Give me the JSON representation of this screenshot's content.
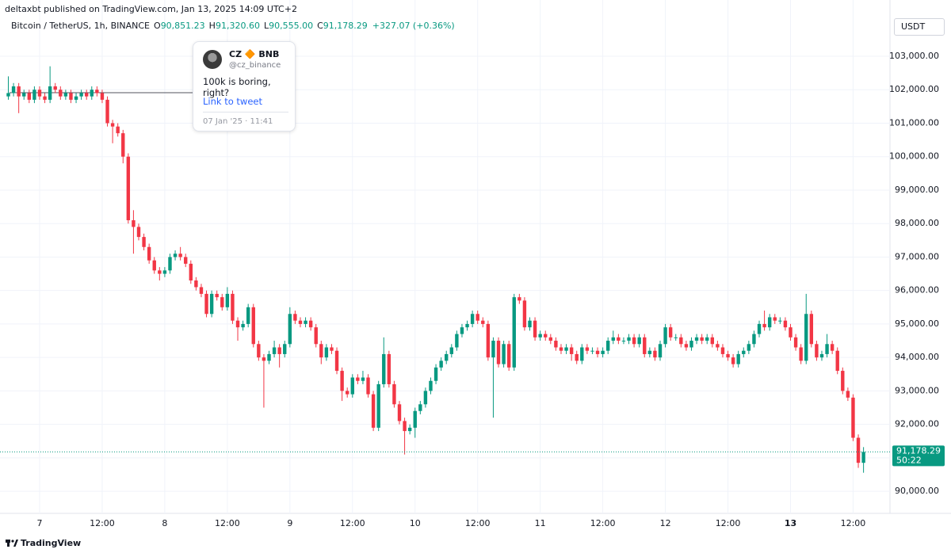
{
  "header": {
    "published": "deltaxbt published on TradingView.com, Jan 13, 2025 14:09 UTC+2",
    "footer": "TradingView"
  },
  "tweet": {
    "author": "CZ 🔶 BNB",
    "handle": "@cz_binance",
    "text": "100k is boring, right?",
    "link": "Link to tweet",
    "date": "07 Jan '25 · 11:41"
  },
  "chart_data": {
    "type": "candlestick",
    "title": "Bitcoin / TetherUS, 1h, BINANCE",
    "currency": "USDT",
    "ohlc_keys": [
      "O",
      "H",
      "L",
      "C"
    ],
    "ohlc_labels": [
      "90,851.23",
      "91,320.60",
      "90,555.00",
      "91,178.29"
    ],
    "change_label": "+327.07 (+0.36%)",
    "countdown": "50:22",
    "up_color": "#089981",
    "down_color": "#f23645",
    "grid": true,
    "ylim": [
      89340,
      104160
    ],
    "yticks": [
      {
        "value": 90000,
        "label": "90,000.00"
      },
      {
        "value": 91000,
        "label": "91,000.00"
      },
      {
        "value": 92000,
        "label": "92,000.00"
      },
      {
        "value": 93000,
        "label": "93,000.00"
      },
      {
        "value": 94000,
        "label": "94,000.00"
      },
      {
        "value": 95000,
        "label": "95,000.00"
      },
      {
        "value": 96000,
        "label": "96,000.00"
      },
      {
        "value": 97000,
        "label": "97,000.00"
      },
      {
        "value": 98000,
        "label": "98,000.00"
      },
      {
        "value": 99000,
        "label": "99,000.00"
      },
      {
        "value": 100000,
        "label": "100,000.00"
      },
      {
        "value": 101000,
        "label": "101,000.00"
      },
      {
        "value": 102000,
        "label": "102,000.00"
      },
      {
        "value": 103000,
        "label": "103,000.00"
      }
    ],
    "categories": [
      null,
      null,
      null,
      null,
      null,
      null,
      "7",
      null,
      null,
      null,
      null,
      null,
      null,
      null,
      null,
      null,
      null,
      null,
      "12:00",
      null,
      null,
      null,
      null,
      null,
      null,
      null,
      null,
      null,
      null,
      null,
      "8",
      null,
      null,
      null,
      null,
      null,
      null,
      null,
      null,
      null,
      null,
      null,
      "12:00",
      null,
      null,
      null,
      null,
      null,
      null,
      null,
      null,
      null,
      null,
      null,
      "9",
      null,
      null,
      null,
      null,
      null,
      null,
      null,
      null,
      null,
      null,
      null,
      "12:00",
      null,
      null,
      null,
      null,
      null,
      null,
      null,
      null,
      null,
      null,
      null,
      "10",
      null,
      null,
      null,
      null,
      null,
      null,
      null,
      null,
      null,
      null,
      null,
      "12:00",
      null,
      null,
      null,
      null,
      null,
      null,
      null,
      null,
      null,
      null,
      null,
      "11",
      null,
      null,
      null,
      null,
      null,
      null,
      null,
      null,
      null,
      null,
      null,
      "12:00",
      null,
      null,
      null,
      null,
      null,
      null,
      null,
      null,
      null,
      null,
      null,
      "12",
      null,
      null,
      null,
      null,
      null,
      null,
      null,
      null,
      null,
      null,
      null,
      "12:00",
      null,
      null,
      null,
      null,
      null,
      null,
      null,
      null,
      null,
      null,
      null,
      "13",
      null,
      null,
      null,
      null,
      null,
      null,
      null,
      null,
      null,
      null,
      null,
      "12:00",
      null,
      null
    ],
    "open": [
      101800,
      101900,
      102100,
      101800,
      101900,
      101700,
      102000,
      101800,
      101700,
      102100,
      102000,
      101800,
      101900,
      101700,
      101800,
      101900,
      101800,
      102000,
      101900,
      101700,
      101000,
      100900,
      100700,
      100000,
      98100,
      97900,
      97600,
      97300,
      96900,
      96600,
      96500,
      96600,
      97000,
      97100,
      97000,
      96800,
      96300,
      96100,
      95900,
      95300,
      95900,
      95800,
      95500,
      95900,
      95100,
      94900,
      95000,
      95500,
      94400,
      94000,
      93900,
      94100,
      94300,
      94100,
      94400,
      95300,
      95100,
      95000,
      95100,
      94900,
      94400,
      94000,
      94300,
      94200,
      93600,
      93000,
      92900,
      93400,
      93300,
      93400,
      92900,
      91900,
      93200,
      94100,
      93200,
      92600,
      92100,
      91800,
      91900,
      92400,
      92600,
      93000,
      93300,
      93700,
      93900,
      94100,
      94300,
      94700,
      94900,
      95000,
      95300,
      95100,
      95000,
      94000,
      94500,
      93800,
      94400,
      93700,
      95800,
      95700,
      94900,
      95100,
      94600,
      94700,
      94600,
      94500,
      94300,
      94200,
      94300,
      94100,
      93900,
      94300,
      94200,
      94200,
      94100,
      94200,
      94500,
      94600,
      94500,
      94500,
      94600,
      94400,
      94600,
      94100,
      94200,
      94000,
      94400,
      94900,
      94600,
      94600,
      94400,
      94300,
      94500,
      94600,
      94500,
      94600,
      94400,
      94300,
      94100,
      94000,
      93800,
      94100,
      94200,
      94400,
      94700,
      95000,
      94900,
      95200,
      95100,
      95100,
      94900,
      94600,
      94300,
      93900,
      95300,
      94400,
      94000,
      94100,
      94400,
      94200,
      93600,
      93000,
      92800,
      91600,
      90851.23
    ],
    "high": [
      102400,
      102200,
      102200,
      102000,
      102000,
      102100,
      102100,
      101900,
      102700,
      102200,
      102100,
      102000,
      102000,
      101900,
      102000,
      102000,
      102100,
      102100,
      102000,
      101800,
      101100,
      101000,
      100800,
      100100,
      98400,
      98000,
      97700,
      97400,
      97000,
      96700,
      96700,
      97100,
      97200,
      97300,
      97100,
      96900,
      96400,
      96200,
      96000,
      96000,
      96000,
      95900,
      96100,
      96000,
      95200,
      95100,
      95600,
      95600,
      94500,
      94100,
      94200,
      94500,
      94400,
      94500,
      95500,
      95400,
      95200,
      95200,
      95200,
      95000,
      94500,
      94400,
      94400,
      94300,
      93700,
      93100,
      93500,
      93500,
      93600,
      93500,
      93000,
      93300,
      94600,
      94200,
      93300,
      92700,
      92200,
      92000,
      92500,
      92700,
      93100,
      93400,
      93800,
      94000,
      94200,
      94400,
      94800,
      95000,
      95100,
      95400,
      95400,
      95200,
      95100,
      94600,
      94600,
      94500,
      94500,
      95900,
      95900,
      95800,
      95200,
      95200,
      94800,
      94800,
      94700,
      94600,
      94400,
      94400,
      94400,
      94200,
      94400,
      94400,
      94300,
      94300,
      94300,
      94600,
      94800,
      94700,
      94600,
      94700,
      94700,
      94700,
      94700,
      94300,
      94300,
      94500,
      95000,
      95000,
      94700,
      94700,
      94500,
      94600,
      94700,
      94700,
      94700,
      94700,
      94500,
      94400,
      94200,
      94100,
      94200,
      94300,
      94500,
      94800,
      95100,
      95400,
      95300,
      95300,
      95200,
      95200,
      95000,
      94700,
      94400,
      95900,
      95400,
      94500,
      94200,
      94700,
      94500,
      94300,
      93700,
      93100,
      92900,
      91700,
      91320.6
    ],
    "low": [
      101700,
      101800,
      101300,
      101700,
      101600,
      101600,
      101700,
      101600,
      101600,
      101900,
      101700,
      101700,
      101600,
      101600,
      101700,
      101700,
      101700,
      101800,
      101600,
      100900,
      100400,
      100600,
      99800,
      98000,
      97100,
      97500,
      97200,
      96800,
      96500,
      96300,
      96400,
      96500,
      96900,
      96900,
      96700,
      96200,
      96000,
      95800,
      95200,
      95200,
      95700,
      95400,
      95400,
      95000,
      94500,
      94800,
      94900,
      94300,
      93900,
      92500,
      93800,
      94000,
      93700,
      94000,
      94300,
      95000,
      94900,
      94900,
      94800,
      94300,
      93800,
      93900,
      94100,
      93500,
      92700,
      92800,
      92800,
      93200,
      93200,
      92800,
      91800,
      91800,
      93100,
      93100,
      92500,
      92000,
      91100,
      91700,
      91600,
      92300,
      92500,
      92900,
      93200,
      93600,
      93800,
      94000,
      94200,
      94600,
      94800,
      94900,
      95000,
      94900,
      93900,
      92200,
      93700,
      93700,
      93600,
      93600,
      95600,
      94800,
      94800,
      94500,
      94500,
      94500,
      94400,
      94200,
      94100,
      94100,
      93900,
      93800,
      93800,
      94100,
      94100,
      94000,
      94000,
      94100,
      94400,
      94400,
      94400,
      94400,
      94300,
      94300,
      94000,
      94000,
      93900,
      93900,
      94300,
      94500,
      94500,
      94300,
      94200,
      94200,
      94400,
      94400,
      94400,
      94300,
      94200,
      94000,
      93900,
      93700,
      93700,
      94000,
      94100,
      94300,
      94600,
      94800,
      94800,
      95000,
      95000,
      94800,
      94500,
      94200,
      93800,
      93800,
      94300,
      93900,
      93900,
      94000,
      94100,
      93500,
      92900,
      92700,
      91500,
      90700,
      90555
    ],
    "close": [
      101900,
      102100,
      101800,
      101900,
      101700,
      102000,
      101800,
      101700,
      102100,
      102000,
      101800,
      101900,
      101700,
      101800,
      101900,
      101800,
      102000,
      101900,
      101700,
      101000,
      100900,
      100700,
      100000,
      98100,
      97900,
      97600,
      97300,
      96900,
      96600,
      96500,
      96600,
      97000,
      97100,
      97000,
      96800,
      96300,
      96100,
      95900,
      95300,
      95900,
      95800,
      95500,
      95900,
      95100,
      94900,
      95000,
      95500,
      94400,
      94000,
      93900,
      94100,
      94300,
      94100,
      94400,
      95300,
      95100,
      95000,
      95100,
      94900,
      94400,
      94000,
      94300,
      94200,
      93600,
      93000,
      92900,
      93400,
      93300,
      93400,
      92900,
      91900,
      93200,
      94100,
      93200,
      92600,
      92100,
      91800,
      91900,
      92400,
      92600,
      93000,
      93300,
      93700,
      93900,
      94100,
      94300,
      94700,
      94900,
      95000,
      95300,
      95100,
      95000,
      94000,
      94500,
      93800,
      94400,
      93700,
      95800,
      95700,
      94900,
      95100,
      94600,
      94700,
      94600,
      94500,
      94300,
      94200,
      94300,
      94100,
      93900,
      94300,
      94200,
      94200,
      94100,
      94200,
      94500,
      94600,
      94500,
      94500,
      94600,
      94400,
      94600,
      94100,
      94200,
      94000,
      94400,
      94900,
      94600,
      94600,
      94400,
      94300,
      94500,
      94600,
      94500,
      94600,
      94400,
      94300,
      94100,
      94000,
      93800,
      94100,
      94200,
      94400,
      94700,
      95000,
      94900,
      95200,
      95100,
      95100,
      94900,
      94600,
      94300,
      93900,
      95300,
      94400,
      94000,
      94100,
      94400,
      94200,
      93600,
      93000,
      92800,
      91600,
      90851.23,
      91178.29
    ]
  }
}
